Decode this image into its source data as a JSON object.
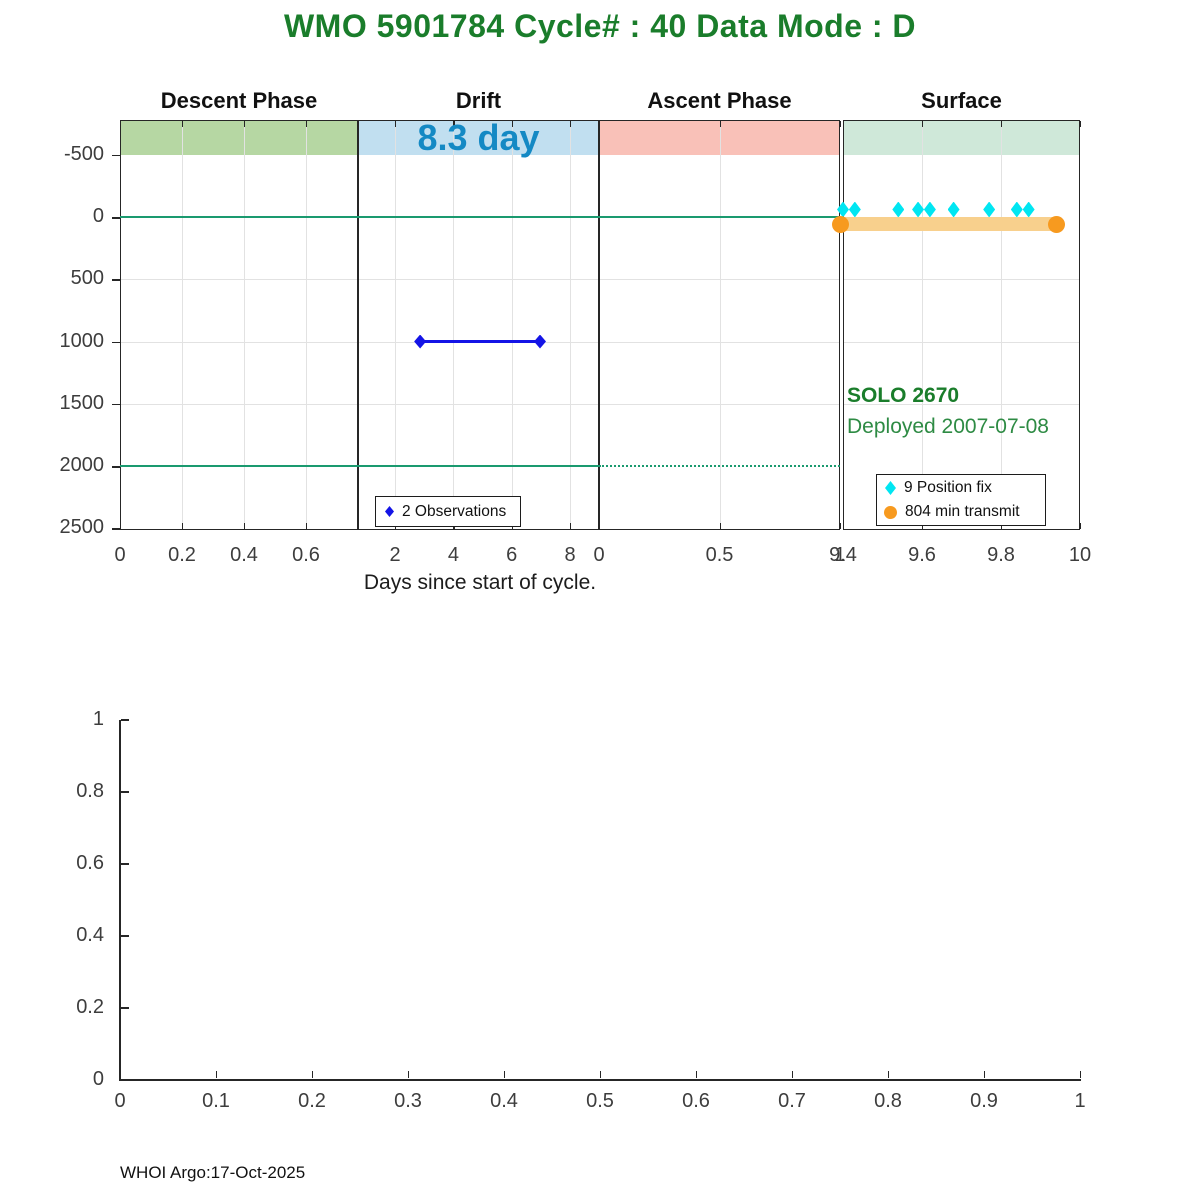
{
  "title": "WMO 5901784   Cycle# : 40   Data Mode : D",
  "footer": "WHOI Argo:17-Oct-2025",
  "colors": {
    "title_green": "#1a7d2b",
    "deploy_green": "#2e8b44",
    "band_descent": "#b6d7a3",
    "band_drift": "#c1dff0",
    "band_ascent": "#f9c1b8",
    "band_surface": "#cfe8d9",
    "drift_duration_blue": "#1489c4",
    "ref_line_green": "#1a9a6f",
    "obs_blue": "#1414e6",
    "fix_cyan": "#00e6f2",
    "transmit_orange": "#f79a1f",
    "transmit_fill": "#f8d08d",
    "axis_dark": "#262626",
    "grid_gray": "#e2e2e2",
    "tick_text": "#3d3d3d"
  },
  "chart_data": [
    {
      "type": "line",
      "title": "WMO 5901784   Cycle# : 40   Data Mode : D",
      "xlabel": "Days since start of cycle.",
      "ylabel": "",
      "ylim": [
        -780,
        2515
      ],
      "y_axis_note": "depth-style axis, increases downward",
      "yticks": [
        {
          "v": -500,
          "t": "-500"
        },
        {
          "v": 0,
          "t": "0"
        },
        {
          "v": 500,
          "t": "500"
        },
        {
          "v": 1000,
          "t": "1000"
        },
        {
          "v": 1500,
          "t": "1500"
        },
        {
          "v": 2000,
          "t": "2000"
        },
        {
          "v": 2500,
          "t": "2500"
        }
      ],
      "ygrid_values": [
        500,
        1000,
        1500
      ],
      "panels": [
        {
          "label": "Descent Phase",
          "band_color_key": "band_descent",
          "xticks": [
            {
              "v": 0,
              "t": "0"
            },
            {
              "v": 0.2,
              "t": "0.2"
            },
            {
              "v": 0.4,
              "t": "0.4"
            },
            {
              "v": 0.6,
              "t": "0.6"
            }
          ]
        },
        {
          "label": "Drift",
          "band_color_key": "band_drift",
          "xticks": [
            {
              "v": 2,
              "t": "2"
            },
            {
              "v": 4,
              "t": "4"
            },
            {
              "v": 6,
              "t": "6"
            },
            {
              "v": 8,
              "t": "8"
            }
          ]
        },
        {
          "label": "Ascent Phase",
          "band_color_key": "band_ascent",
          "xticks": [
            {
              "v": 0,
              "t": "0"
            },
            {
              "v": 0.5,
              "t": "0.5"
            },
            {
              "v": 1,
              "t": "1"
            }
          ]
        },
        {
          "label": "Surface",
          "band_color_key": "band_surface",
          "xticks": [
            {
              "v": 9.4,
              "t": "9.4"
            },
            {
              "v": 9.6,
              "t": "9.6"
            },
            {
              "v": 9.8,
              "t": "9.8"
            },
            {
              "v": 10,
              "t": "10"
            }
          ]
        }
      ],
      "ref_lines": [
        {
          "y": 0,
          "style": "solid",
          "panels": [
            0,
            1,
            2
          ]
        },
        {
          "y": 2000,
          "style": "solid",
          "panels": [
            0,
            1
          ]
        },
        {
          "y": 2000,
          "style": "dotted",
          "panels": [
            2
          ]
        }
      ],
      "series": [
        {
          "name": "2 Observations",
          "panel": 1,
          "kind": "line",
          "marker": "diamond",
          "color_key": "obs_blue",
          "x": [
            2.86,
            6.97
          ],
          "y": 1000
        },
        {
          "name": "9 Position fix",
          "panel": 3,
          "kind": "markers",
          "marker": "diamond",
          "color_key": "fix_cyan",
          "x": [
            9.4,
            9.43,
            9.54,
            9.59,
            9.62,
            9.68,
            9.77,
            9.84,
            9.87
          ],
          "y": -60
        },
        {
          "name": "804 min transmit",
          "panel": 3,
          "kind": "band",
          "marker": "circle",
          "color_key": "transmit_orange",
          "fill_key": "transmit_fill",
          "x": [
            9.4,
            9.94
          ],
          "y": 60
        }
      ],
      "annotations": {
        "drift_duration": "8.3 day",
        "float_name": "SOLO 2670",
        "deployed": "Deployed 2007-07-08"
      },
      "legends": [
        {
          "items": [
            {
              "label": "2 Observations",
              "marker": "diamond",
              "color_key": "obs_blue"
            }
          ]
        },
        {
          "items": [
            {
              "label": "9 Position fix",
              "marker": "diamond",
              "color_key": "fix_cyan"
            },
            {
              "label": "804 min transmit",
              "marker": "circle",
              "color_key": "transmit_orange"
            }
          ]
        }
      ]
    },
    {
      "type": "line",
      "title": "",
      "xlabel": "",
      "ylabel": "",
      "xlim": [
        0,
        1
      ],
      "ylim": [
        0,
        1
      ],
      "series": [],
      "xticks": [
        {
          "v": 0,
          "t": "0"
        },
        {
          "v": 0.1,
          "t": "0.1"
        },
        {
          "v": 0.2,
          "t": "0.2"
        },
        {
          "v": 0.3,
          "t": "0.3"
        },
        {
          "v": 0.4,
          "t": "0.4"
        },
        {
          "v": 0.5,
          "t": "0.5"
        },
        {
          "v": 0.6,
          "t": "0.6"
        },
        {
          "v": 0.7,
          "t": "0.7"
        },
        {
          "v": 0.8,
          "t": "0.8"
        },
        {
          "v": 0.9,
          "t": "0.9"
        },
        {
          "v": 1,
          "t": "1"
        }
      ],
      "yticks": [
        {
          "v": 0,
          "t": "0"
        },
        {
          "v": 0.2,
          "t": "0.2"
        },
        {
          "v": 0.4,
          "t": "0.4"
        },
        {
          "v": 0.6,
          "t": "0.6"
        },
        {
          "v": 0.8,
          "t": "0.8"
        },
        {
          "v": 1,
          "t": "1"
        }
      ]
    }
  ]
}
